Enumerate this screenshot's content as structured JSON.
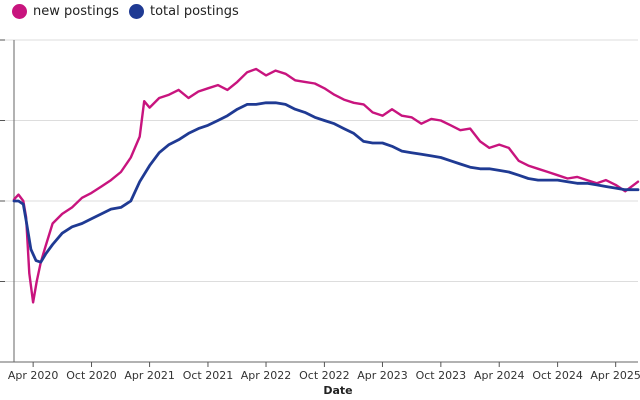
{
  "chart_data": {
    "type": "line",
    "xlabel": "Date",
    "ylabel": "",
    "x_ticks": [
      "Apr 2020",
      "Oct 2020",
      "Apr 2021",
      "Oct 2021",
      "Apr 2022",
      "Oct 2022",
      "Apr 2023",
      "Oct 2023",
      "Apr 2024",
      "Oct 2024",
      "Apr 2025"
    ],
    "xlim": [
      "2020-02-01",
      "2025-06-10"
    ],
    "ylim": [
      -100,
      100
    ],
    "y_ticks": [
      -100,
      -50,
      0,
      50,
      100
    ],
    "grid": true,
    "legend_position": "top-left",
    "series": [
      {
        "name": "new postings",
        "color": "#c8147e",
        "points": [
          [
            "2020-02-01",
            1
          ],
          [
            "2020-02-15",
            4
          ],
          [
            "2020-03-01",
            0
          ],
          [
            "2020-03-10",
            -10
          ],
          [
            "2020-03-20",
            -45
          ],
          [
            "2020-04-01",
            -63
          ],
          [
            "2020-04-12",
            -50
          ],
          [
            "2020-04-25",
            -38
          ],
          [
            "2020-05-10",
            -28
          ],
          [
            "2020-06-01",
            -14
          ],
          [
            "2020-07-01",
            -8
          ],
          [
            "2020-08-01",
            -4
          ],
          [
            "2020-09-01",
            2
          ],
          [
            "2020-10-01",
            5
          ],
          [
            "2020-11-01",
            9
          ],
          [
            "2020-12-01",
            13
          ],
          [
            "2021-01-01",
            18
          ],
          [
            "2021-02-01",
            27
          ],
          [
            "2021-03-01",
            40
          ],
          [
            "2021-03-15",
            62
          ],
          [
            "2021-04-01",
            58
          ],
          [
            "2021-05-01",
            64
          ],
          [
            "2021-06-01",
            66
          ],
          [
            "2021-07-01",
            69
          ],
          [
            "2021-08-01",
            64
          ],
          [
            "2021-09-01",
            68
          ],
          [
            "2021-10-01",
            70
          ],
          [
            "2021-11-01",
            72
          ],
          [
            "2021-12-01",
            69
          ],
          [
            "2022-01-01",
            74
          ],
          [
            "2022-02-01",
            80
          ],
          [
            "2022-03-01",
            82
          ],
          [
            "2022-04-01",
            78
          ],
          [
            "2022-05-01",
            81
          ],
          [
            "2022-06-01",
            79
          ],
          [
            "2022-07-01",
            75
          ],
          [
            "2022-08-01",
            74
          ],
          [
            "2022-09-01",
            73
          ],
          [
            "2022-10-01",
            70
          ],
          [
            "2022-11-01",
            66
          ],
          [
            "2022-12-01",
            63
          ],
          [
            "2023-01-01",
            61
          ],
          [
            "2023-02-01",
            60
          ],
          [
            "2023-03-01",
            55
          ],
          [
            "2023-04-01",
            53
          ],
          [
            "2023-05-01",
            57
          ],
          [
            "2023-06-01",
            53
          ],
          [
            "2023-07-01",
            52
          ],
          [
            "2023-08-01",
            48
          ],
          [
            "2023-09-01",
            51
          ],
          [
            "2023-10-01",
            50
          ],
          [
            "2023-11-01",
            47
          ],
          [
            "2023-12-01",
            44
          ],
          [
            "2024-01-01",
            45
          ],
          [
            "2024-02-01",
            37
          ],
          [
            "2024-03-01",
            33
          ],
          [
            "2024-04-01",
            35
          ],
          [
            "2024-05-01",
            33
          ],
          [
            "2024-06-01",
            25
          ],
          [
            "2024-07-01",
            22
          ],
          [
            "2024-08-01",
            20
          ],
          [
            "2024-09-01",
            18
          ],
          [
            "2024-10-01",
            16
          ],
          [
            "2024-11-01",
            14
          ],
          [
            "2024-12-01",
            15
          ],
          [
            "2025-01-01",
            13
          ],
          [
            "2025-02-01",
            11
          ],
          [
            "2025-03-01",
            13
          ],
          [
            "2025-04-01",
            10
          ],
          [
            "2025-05-01",
            6
          ],
          [
            "2025-06-10",
            12
          ]
        ]
      },
      {
        "name": "total postings",
        "color": "#1f3a93",
        "points": [
          [
            "2020-02-01",
            0
          ],
          [
            "2020-02-15",
            0
          ],
          [
            "2020-03-01",
            -2
          ],
          [
            "2020-03-10",
            -12
          ],
          [
            "2020-03-25",
            -30
          ],
          [
            "2020-04-10",
            -37
          ],
          [
            "2020-04-25",
            -38
          ],
          [
            "2020-05-10",
            -33
          ],
          [
            "2020-06-01",
            -27
          ],
          [
            "2020-07-01",
            -20
          ],
          [
            "2020-08-01",
            -16
          ],
          [
            "2020-09-01",
            -14
          ],
          [
            "2020-10-01",
            -11
          ],
          [
            "2020-11-01",
            -8
          ],
          [
            "2020-12-01",
            -5
          ],
          [
            "2021-01-01",
            -4
          ],
          [
            "2021-02-01",
            0
          ],
          [
            "2021-03-01",
            12
          ],
          [
            "2021-04-01",
            22
          ],
          [
            "2021-05-01",
            30
          ],
          [
            "2021-06-01",
            35
          ],
          [
            "2021-07-01",
            38
          ],
          [
            "2021-08-01",
            42
          ],
          [
            "2021-09-01",
            45
          ],
          [
            "2021-10-01",
            47
          ],
          [
            "2021-11-01",
            50
          ],
          [
            "2021-12-01",
            53
          ],
          [
            "2022-01-01",
            57
          ],
          [
            "2022-02-01",
            60
          ],
          [
            "2022-03-01",
            60
          ],
          [
            "2022-04-01",
            61
          ],
          [
            "2022-05-01",
            61
          ],
          [
            "2022-06-01",
            60
          ],
          [
            "2022-07-01",
            57
          ],
          [
            "2022-08-01",
            55
          ],
          [
            "2022-09-01",
            52
          ],
          [
            "2022-10-01",
            50
          ],
          [
            "2022-11-01",
            48
          ],
          [
            "2022-12-01",
            45
          ],
          [
            "2023-01-01",
            42
          ],
          [
            "2023-02-01",
            37
          ],
          [
            "2023-03-01",
            36
          ],
          [
            "2023-04-01",
            36
          ],
          [
            "2023-05-01",
            34
          ],
          [
            "2023-06-01",
            31
          ],
          [
            "2023-07-01",
            30
          ],
          [
            "2023-08-01",
            29
          ],
          [
            "2023-09-01",
            28
          ],
          [
            "2023-10-01",
            27
          ],
          [
            "2023-11-01",
            25
          ],
          [
            "2023-12-01",
            23
          ],
          [
            "2024-01-01",
            21
          ],
          [
            "2024-02-01",
            20
          ],
          [
            "2024-03-01",
            20
          ],
          [
            "2024-04-01",
            19
          ],
          [
            "2024-05-01",
            18
          ],
          [
            "2024-06-01",
            16
          ],
          [
            "2024-07-01",
            14
          ],
          [
            "2024-08-01",
            13
          ],
          [
            "2024-09-01",
            13
          ],
          [
            "2024-10-01",
            13
          ],
          [
            "2024-11-01",
            12
          ],
          [
            "2024-12-01",
            11
          ],
          [
            "2025-01-01",
            11
          ],
          [
            "2025-02-01",
            10
          ],
          [
            "2025-03-01",
            9
          ],
          [
            "2025-04-01",
            8
          ],
          [
            "2025-05-01",
            7
          ],
          [
            "2025-06-10",
            7
          ]
        ]
      }
    ]
  }
}
